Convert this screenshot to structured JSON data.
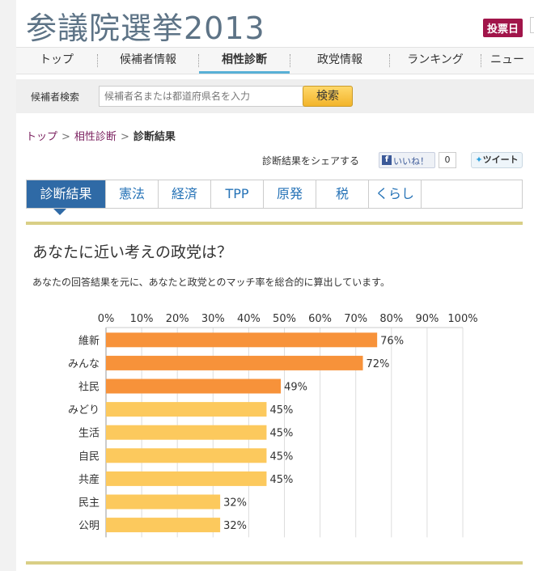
{
  "header": {
    "site_title": "参議院選挙2013",
    "vote_badge": "投票日"
  },
  "nav": {
    "items": [
      {
        "label": "トップ"
      },
      {
        "label": "候補者情報"
      },
      {
        "label": "相性診断"
      },
      {
        "label": "政党情報"
      },
      {
        "label": "ランキング"
      },
      {
        "label": "ニュー"
      }
    ],
    "active_index": 2
  },
  "search": {
    "label": "候補者検索",
    "placeholder": "候補者名または都道府県名を入力",
    "button": "検索"
  },
  "breadcrumb": {
    "items": [
      "トップ",
      "相性診断"
    ],
    "current": "診断結果"
  },
  "share": {
    "label": "診断結果をシェアする",
    "like_label": "いいね！",
    "like_count": "0",
    "tweet_label": "ツイート"
  },
  "tabs": {
    "items": [
      {
        "label": "診断結果"
      },
      {
        "label": "憲法"
      },
      {
        "label": "経済"
      },
      {
        "label": "TPP"
      },
      {
        "label": "原発"
      },
      {
        "label": "税"
      },
      {
        "label": "くらし"
      }
    ],
    "active_index": 0
  },
  "main": {
    "heading": "あなたに近い考えの政党は？",
    "description": "あなたの回答結果を元に、あなたと政党とのマッチ率を総合的に算出しています。"
  },
  "chart_data": {
    "type": "bar",
    "orientation": "horizontal",
    "categories": [
      "維新",
      "みんな",
      "社民",
      "みどり",
      "生活",
      "自民",
      "共産",
      "民主",
      "公明"
    ],
    "values": [
      76,
      72,
      49,
      45,
      45,
      45,
      45,
      32,
      32
    ],
    "value_labels": [
      "76%",
      "72%",
      "49%",
      "45%",
      "45%",
      "45%",
      "45%",
      "32%",
      "32%"
    ],
    "xticks": [
      "0%",
      "10%",
      "20%",
      "30%",
      "40%",
      "50%",
      "60%",
      "70%",
      "80%",
      "90%",
      "100%"
    ],
    "xlim": [
      0,
      100
    ],
    "grid": true,
    "colors": {
      "top": "#f7923a",
      "rest": "#fcc95d",
      "grid": "#dddddd"
    },
    "highlight_count": 3
  }
}
